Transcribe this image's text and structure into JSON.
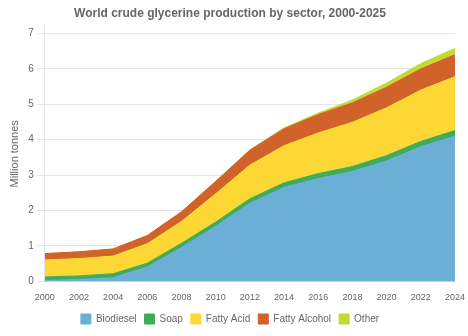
{
  "chart_data": {
    "type": "area",
    "title": "World crude glycerine production by sector, 2000-2025",
    "ylabel": "Million tonnes",
    "x": [
      2000,
      2002,
      2004,
      2006,
      2008,
      2010,
      2012,
      2014,
      2016,
      2018,
      2020,
      2022,
      2024
    ],
    "series": [
      {
        "name": "Biodiesel",
        "color": "#6baed6",
        "values": [
          0.02,
          0.05,
          0.1,
          0.4,
          0.95,
          1.55,
          2.2,
          2.65,
          2.9,
          3.1,
          3.4,
          3.8,
          4.1
        ]
      },
      {
        "name": "Soap",
        "color": "#41ab5d",
        "values": [
          0.1,
          0.1,
          0.11,
          0.11,
          0.12,
          0.12,
          0.13,
          0.13,
          0.14,
          0.14,
          0.15,
          0.15,
          0.16
        ]
      },
      {
        "name": "Fatty Acid",
        "color": "#fdd835",
        "values": [
          0.48,
          0.49,
          0.5,
          0.55,
          0.62,
          0.8,
          0.95,
          1.05,
          1.15,
          1.25,
          1.35,
          1.45,
          1.52
        ]
      },
      {
        "name": "Fatty Alcohol",
        "color": "#d0622a",
        "values": [
          0.18,
          0.19,
          0.2,
          0.23,
          0.27,
          0.35,
          0.42,
          0.48,
          0.52,
          0.55,
          0.58,
          0.6,
          0.62
        ]
      },
      {
        "name": "Other",
        "color": "#c5d935",
        "values": [
          0.0,
          0.0,
          0.0,
          0.0,
          0.0,
          0.0,
          0.01,
          0.02,
          0.04,
          0.08,
          0.12,
          0.15,
          0.18
        ]
      }
    ],
    "xlim": [
      2000,
      2024
    ],
    "xticks": [
      2000,
      2002,
      2004,
      2006,
      2008,
      2010,
      2012,
      2014,
      2016,
      2018,
      2020,
      2022,
      2024
    ],
    "ylim": [
      0,
      7.2
    ],
    "yticks": [
      0,
      1,
      2,
      3,
      4,
      5,
      6,
      7
    ],
    "stacked": true,
    "grid": "y",
    "legend": "bottom"
  }
}
